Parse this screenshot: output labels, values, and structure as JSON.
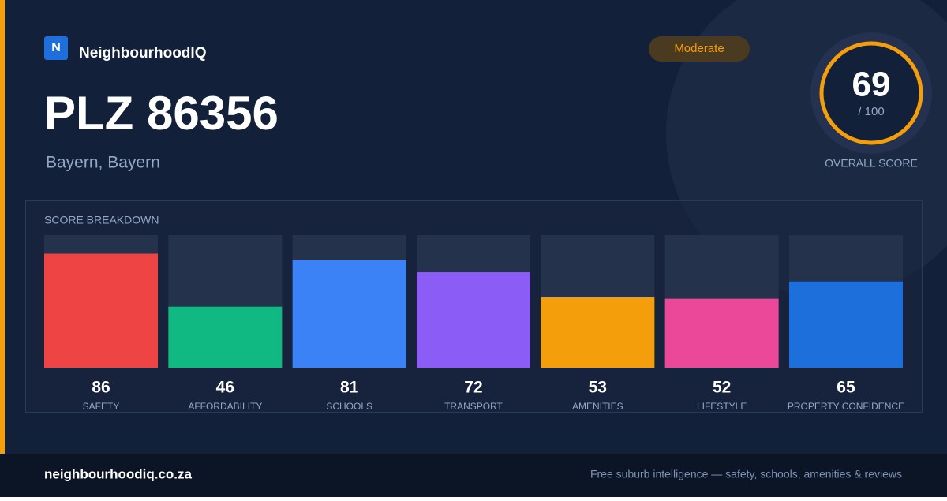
{
  "brand": {
    "logo": "N",
    "name": "NeighbourhoodIQ"
  },
  "badge": "Moderate",
  "title": "PLZ 86356",
  "subtitle": "Bayern, Bayern",
  "overall": {
    "score": 69,
    "max_label": "/ 100",
    "label": "OVERALL SCORE"
  },
  "chart_data": {
    "type": "bar",
    "title": "SCORE BREAKDOWN",
    "categories": [
      "SAFETY",
      "AFFORDABILITY",
      "SCHOOLS",
      "TRANSPORT",
      "AMENITIES",
      "LIFESTYLE",
      "PROPERTY CONFIDENCE"
    ],
    "values": [
      86,
      46,
      81,
      72,
      53,
      52,
      65
    ],
    "colors": [
      "#ef4444",
      "#10b981",
      "#3b82f6",
      "#8b5cf6",
      "#f59e0b",
      "#ec4899",
      "#1d6fdc"
    ],
    "ylim": [
      0,
      100
    ]
  },
  "footer": {
    "site": "neighbourhoodiq.co.za",
    "tagline": "Free suburb intelligence — safety, schools, amenities & reviews"
  }
}
